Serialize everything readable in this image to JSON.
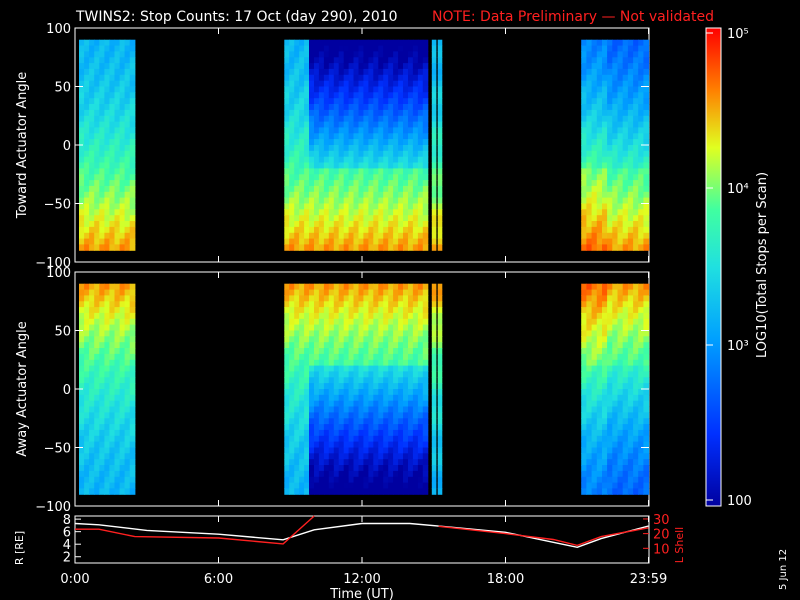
{
  "title": "TWINS2: Stop Counts: 17 Oct (day 290), 2010",
  "note": "NOTE: Data Preliminary — Not validated",
  "date_stamp": "5 Jun 12",
  "colorbar": {
    "label": "LOG10(Total Stops per Scan)",
    "ticks": [
      "10⁵",
      "10⁴",
      "10³",
      "100"
    ]
  },
  "chart_data": [
    {
      "type": "heatmap",
      "name": "toward",
      "ylabel": "Toward Actuator Angle",
      "ylim": [
        -100,
        100
      ],
      "yticks": [
        100,
        50,
        0,
        -50,
        -100
      ],
      "xlim_hours": [
        0,
        24
      ],
      "data_intervals_ut": [
        [
          "0:10",
          "2:30"
        ],
        [
          "8:45",
          "14:45"
        ],
        [
          "14:55",
          "15:05"
        ],
        [
          "15:10",
          "15:20"
        ],
        [
          "21:10",
          "23:59"
        ]
      ],
      "pattern": "high counts (red/orange) near -60 to -90 deg, low counts (blue) near +20 to +90 deg during 10:00-14:45"
    },
    {
      "type": "heatmap",
      "name": "away",
      "ylabel": "Away Actuator Angle",
      "ylim": [
        -100,
        100
      ],
      "yticks": [
        100,
        50,
        0,
        -50,
        -100
      ],
      "xlim_hours": [
        0,
        24
      ],
      "data_intervals_ut": [
        [
          "0:10",
          "2:30"
        ],
        [
          "8:45",
          "14:45"
        ],
        [
          "14:55",
          "15:05"
        ],
        [
          "15:10",
          "15:20"
        ],
        [
          "21:10",
          "23:59"
        ]
      ],
      "pattern": "high counts (red/orange) near +60 to +90 deg, low counts (blue) near 0 to -90 deg during 10:00-14:45"
    },
    {
      "type": "line",
      "name": "orbit",
      "ylabel_left": "R [RE]",
      "ylabel_right": "L Shell",
      "xlabel": "Time (UT)",
      "xticks": [
        "0:00",
        "6:00",
        "12:00",
        "18:00",
        "23:59"
      ],
      "yticks_left": [
        2,
        4,
        6,
        8
      ],
      "yticks_right": [
        10,
        20,
        30
      ],
      "ylim_left": [
        1,
        8.5
      ],
      "ylim_right": [
        0,
        32
      ],
      "series": [
        {
          "name": "R [RE]",
          "color": "#ffffff",
          "x": [
            0,
            1,
            3,
            6,
            8.7,
            10,
            12,
            14,
            15.5,
            18,
            20,
            21,
            22,
            23.98
          ],
          "y": [
            7.3,
            7.1,
            6.2,
            5.6,
            4.7,
            6.3,
            7.3,
            7.3,
            6.8,
            5.9,
            4.3,
            3.5,
            4.9,
            6.9
          ]
        },
        {
          "name": "L Shell",
          "color": "#ff2020",
          "x": [
            0,
            1,
            2.5,
            6,
            8.7,
            10,
            14.7,
            15.2,
            18,
            20,
            21,
            22,
            23.98
          ],
          "y": [
            23,
            23,
            18,
            17,
            13,
            32,
            null,
            25,
            20,
            16,
            12,
            18,
            24
          ]
        }
      ]
    }
  ]
}
